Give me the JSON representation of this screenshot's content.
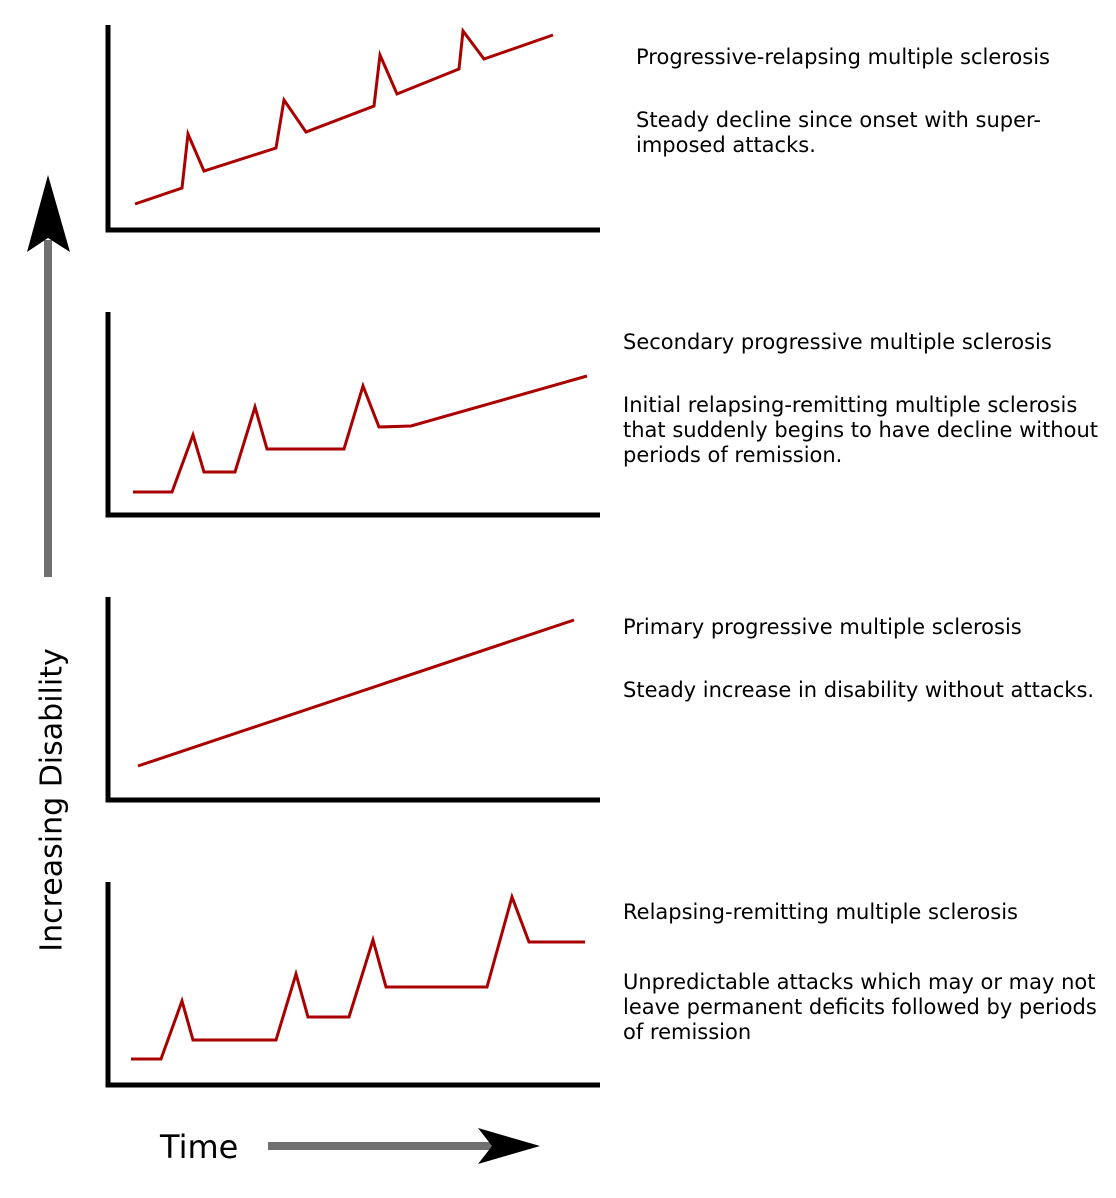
{
  "axis": {
    "y_label": "Increasing Disability",
    "x_label": "Time"
  },
  "colors": {
    "curve": "#aa0000",
    "axis": "#000000",
    "arrow": "#707070"
  },
  "panels": [
    {
      "title": "Progressive-relapsing multiple sclerosis",
      "description": "Steady decline since onset with super-\nimposed attacks."
    },
    {
      "title": "Secondary progressive multiple sclerosis",
      "description": "Initial relapsing-remitting multiple sclerosis\nthat suddenly begins to have decline without\nperiods of remission."
    },
    {
      "title": "Primary progressive multiple sclerosis",
      "description": "Steady increase in disability without attacks."
    },
    {
      "title": "Relapsing-remitting multiple sclerosis",
      "description": "Unpredictable attacks which may or may not\nleave permanent deficits followed by periods\nof remission"
    }
  ]
}
